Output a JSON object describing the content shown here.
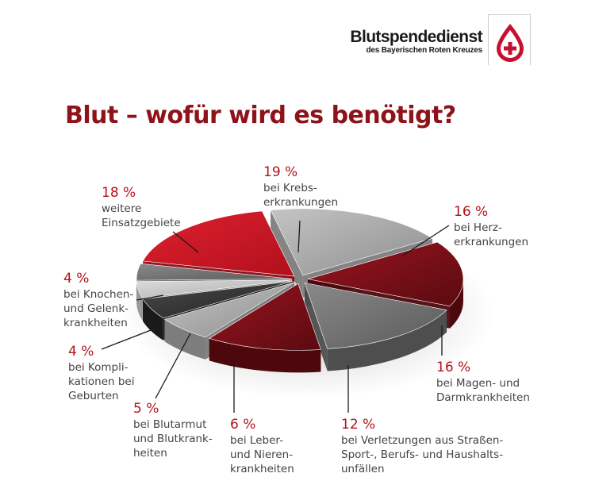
{
  "logo": {
    "title": "Blutspendedienst",
    "subtitle": "des Bayerischen Roten Kreuzes"
  },
  "title": "Blut – wofür wird es benötigt?",
  "colors": {
    "title": "#8e1219",
    "percent": "#b5121b",
    "text": "#444444"
  },
  "chart_data": {
    "type": "pie",
    "style": "3d-exploded",
    "slices": [
      {
        "value": 19,
        "percent_label": "19 %",
        "lines": [
          "bei Krebs-",
          "erkrankungen"
        ],
        "color": "gray"
      },
      {
        "value": 16,
        "percent_label": "16 %",
        "lines": [
          "bei Herz-",
          "erkrankungen"
        ],
        "color": "dark-red"
      },
      {
        "value": 16,
        "percent_label": "16 %",
        "lines": [
          "bei Magen- und",
          "Darmkrankheiten"
        ],
        "color": "dark-gray"
      },
      {
        "value": 12,
        "percent_label": "12 %",
        "lines": [
          "bei Verletzungen aus Straßen-",
          "Sport-, Berufs- und Haushalts-",
          "unfällen"
        ],
        "color": "dark-red"
      },
      {
        "value": 6,
        "percent_label": "6 %",
        "lines": [
          "bei Leber-",
          "und Nieren-",
          "krankheiten"
        ],
        "color": "gray"
      },
      {
        "value": 5,
        "percent_label": "5 %",
        "lines": [
          "bei Blutarmut",
          "und Blutkrank-",
          "heiten"
        ],
        "color": "black"
      },
      {
        "value": 4,
        "percent_label": "4 %",
        "lines": [
          "bei Kompli-",
          "kationen bei",
          "Geburten"
        ],
        "color": "light-gray"
      },
      {
        "value": 4,
        "percent_label": "4 %",
        "lines": [
          "bei Knochen-",
          "und Gelenk-",
          "krankheiten"
        ],
        "color": "dark-gray"
      },
      {
        "value": 18,
        "percent_label": "18 %",
        "lines": [
          "weitere",
          "Einsatzgebiete"
        ],
        "color": "red"
      }
    ]
  }
}
